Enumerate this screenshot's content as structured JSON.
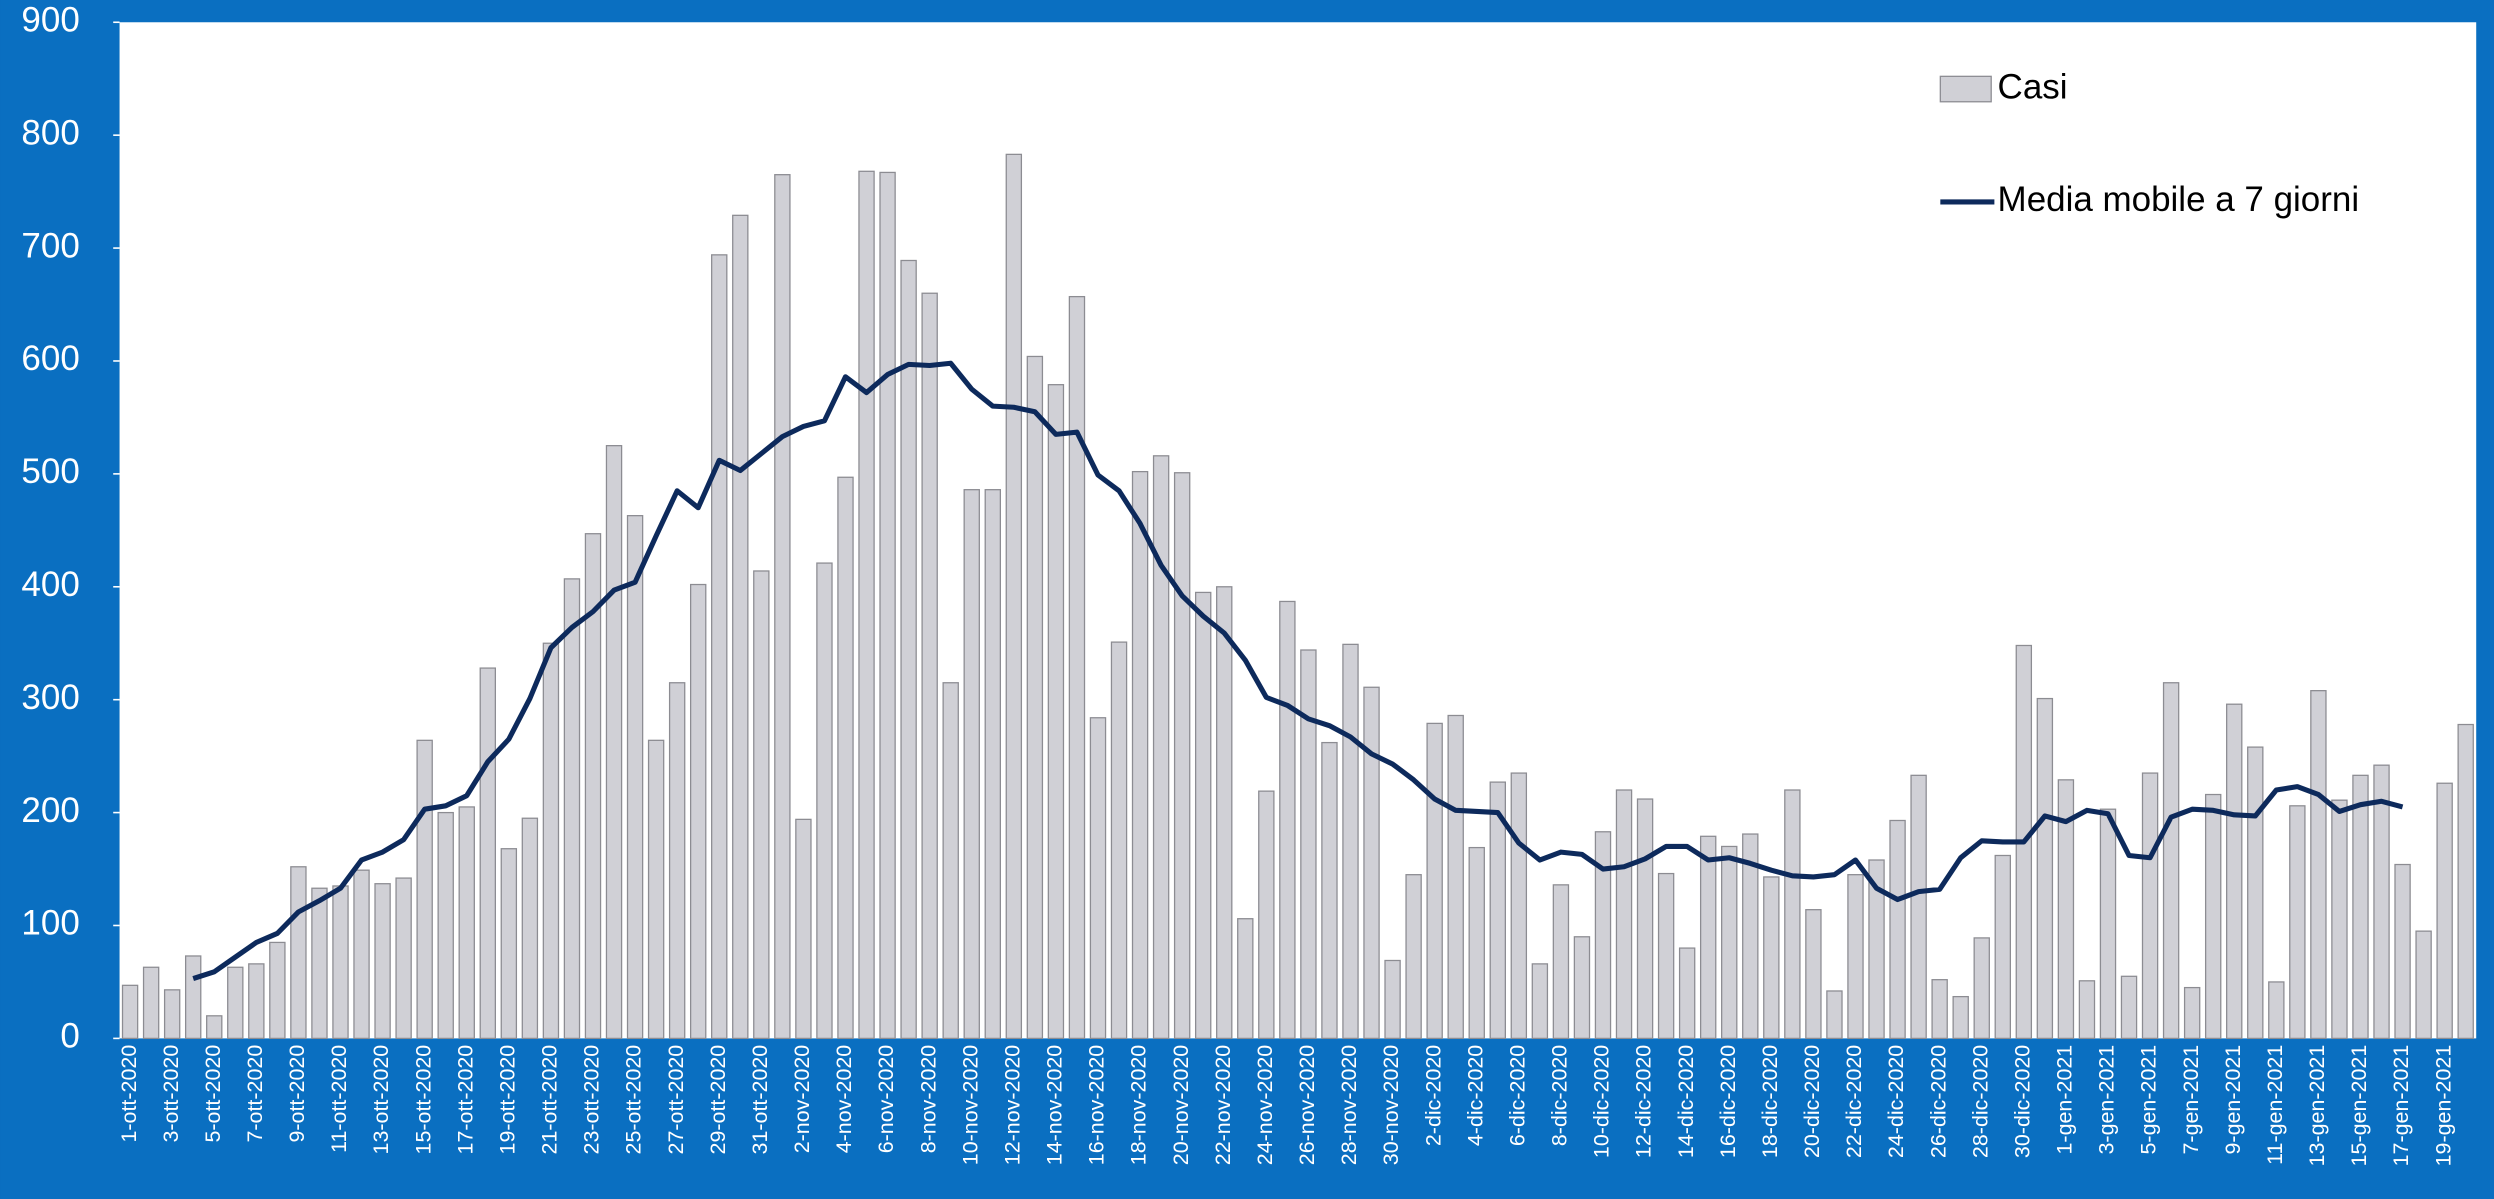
{
  "chart_data": {
    "type": "bar-line",
    "categories": [
      "1-ott-2020",
      null,
      "3-ott-2020",
      null,
      "5-ott-2020",
      null,
      "7-ott-2020",
      null,
      "9-ott-2020",
      null,
      "11-ott-2020",
      null,
      "13-ott-2020",
      null,
      "15-ott-2020",
      null,
      "17-ott-2020",
      null,
      "19-ott-2020",
      null,
      "21-ott-2020",
      null,
      "23-ott-2020",
      null,
      "25-ott-2020",
      null,
      "27-ott-2020",
      null,
      "29-ott-2020",
      null,
      "31-ott-2020",
      null,
      "2-nov-2020",
      null,
      "4-nov-2020",
      null,
      "6-nov-2020",
      null,
      "8-nov-2020",
      null,
      "10-nov-2020",
      null,
      "12-nov-2020",
      null,
      "14-nov-2020",
      null,
      "16-nov-2020",
      null,
      "18-nov-2020",
      null,
      "20-nov-2020",
      null,
      "22-nov-2020",
      null,
      "24-nov-2020",
      null,
      "26-nov-2020",
      null,
      "28-nov-2020",
      null,
      "30-nov-2020",
      null,
      "2-dic-2020",
      null,
      "4-dic-2020",
      null,
      "6-dic-2020",
      null,
      "8-dic-2020",
      null,
      "10-dic-2020",
      null,
      "12-dic-2020",
      null,
      "14-dic-2020",
      null,
      "16-dic-2020",
      null,
      "18-dic-2020",
      null,
      "20-dic-2020",
      null,
      "22-dic-2020",
      null,
      "24-dic-2020",
      null,
      "26-dic-2020",
      null,
      "28-dic-2020",
      null,
      "30-dic-2020",
      null,
      "1-gen-2021",
      null,
      "3-gen-2021",
      null,
      "5-gen-2021",
      null,
      "7-gen-2021",
      null,
      "9-gen-2021",
      null,
      "11-gen-2021",
      null,
      "13-gen-2021",
      null,
      "15-gen-2021",
      null,
      "17-gen-2021",
      null,
      "19-gen-2021",
      null
    ],
    "series": [
      {
        "name": "Casi",
        "type": "bar",
        "color": "#d0d0d6",
        "values": [
          47,
          63,
          43,
          73,
          20,
          63,
          66,
          85,
          152,
          133,
          135,
          149,
          137,
          142,
          264,
          200,
          205,
          328,
          168,
          195,
          350,
          407,
          447,
          525,
          463,
          264,
          315,
          402,
          694,
          729,
          414,
          765,
          194,
          421,
          497,
          768,
          767,
          689,
          660,
          315,
          486,
          486,
          783,
          604,
          579,
          657,
          284,
          351,
          502,
          516,
          501,
          395,
          400,
          106,
          219,
          387,
          344,
          262,
          349,
          311,
          69,
          145,
          279,
          286,
          169,
          227,
          235,
          66,
          136,
          90,
          183,
          220,
          212,
          146,
          80,
          179,
          170,
          181,
          143,
          220,
          114,
          42,
          145,
          158,
          193,
          233,
          52,
          37,
          89,
          162,
          348,
          301,
          229,
          51,
          203,
          55,
          235,
          315,
          45,
          216,
          296,
          258,
          50,
          206,
          308,
          211,
          233,
          242,
          154,
          95,
          226,
          278
        ]
      },
      {
        "name": "Media mobile a 7 giorni",
        "type": "line",
        "color": "#0d2a5c",
        "values": [
          null,
          null,
          null,
          53,
          59,
          72,
          85,
          93,
          112,
          122,
          133,
          158,
          165,
          176,
          203,
          206,
          215,
          245,
          265,
          301,
          346,
          364,
          378,
          397,
          404,
          445,
          485,
          470,
          512,
          503,
          518,
          533,
          542,
          547,
          586,
          572,
          588,
          597,
          596,
          598,
          575,
          560,
          559,
          555,
          535,
          537,
          499,
          485,
          456,
          419,
          392,
          374,
          359,
          335,
          302,
          295,
          283,
          277,
          267,
          252,
          243,
          229,
          212,
          202,
          201,
          200,
          173,
          158,
          165,
          163,
          150,
          152,
          159,
          170,
          170,
          158,
          160,
          155,
          149,
          144,
          143,
          145,
          158,
          133,
          123,
          130,
          132,
          160,
          175,
          174,
          174,
          197,
          192,
          202,
          199,
          162,
          160,
          196,
          203,
          202,
          198,
          197,
          220,
          223,
          216,
          201,
          207,
          210,
          205,
          null,
          null,
          null
        ]
      }
    ],
    "ylim": [
      0,
      900
    ],
    "yticks": [
      0,
      100,
      200,
      300,
      400,
      500,
      600,
      700,
      800,
      900
    ],
    "grid": false,
    "legend": "upper right"
  }
}
